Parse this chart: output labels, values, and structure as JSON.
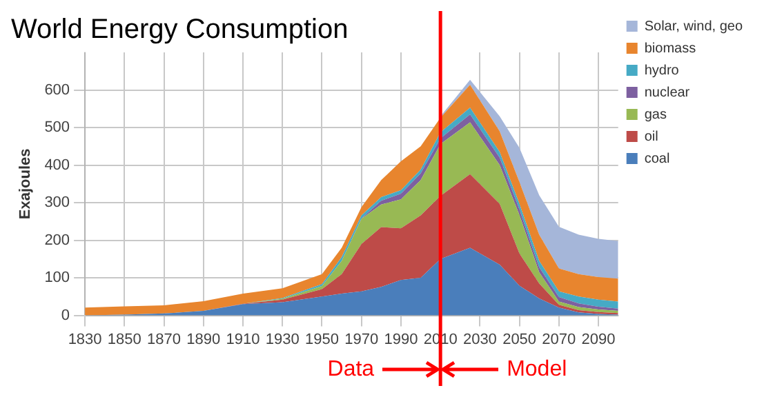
{
  "chart_data": {
    "type": "area",
    "title": "World Energy Consumption",
    "ylabel": "Exajoules",
    "stacked": true,
    "x": [
      1830,
      1850,
      1870,
      1890,
      1910,
      1930,
      1950,
      1960,
      1970,
      1980,
      1990,
      2000,
      2010,
      2025,
      2040,
      2050,
      2060,
      2070,
      2080,
      2090,
      2100
    ],
    "series": [
      {
        "name": "coal",
        "color": "#4a7ebb",
        "values": [
          0,
          2,
          5,
          12,
          30,
          35,
          50,
          58,
          64,
          76,
          94,
          100,
          150,
          180,
          135,
          79,
          45,
          21,
          8,
          4,
          2
        ]
      },
      {
        "name": "oil",
        "color": "#be4b48",
        "values": [
          0,
          0,
          0,
          0,
          1,
          7,
          20,
          52,
          126,
          159,
          138,
          166,
          168,
          196,
          162,
          86,
          40,
          7,
          6,
          5,
          4
        ]
      },
      {
        "name": "gas",
        "color": "#98b954",
        "values": [
          0,
          0,
          0,
          0,
          0,
          2,
          8,
          35,
          67,
          60,
          77,
          94,
          138,
          138,
          103,
          102,
          30,
          9,
          8,
          7,
          6
        ]
      },
      {
        "name": "nuclear",
        "color": "#7d60a0",
        "values": [
          0,
          0,
          0,
          0,
          0,
          0,
          0,
          0,
          1,
          10,
          15,
          18,
          15,
          21,
          20,
          15,
          13,
          12,
          10,
          7,
          6
        ]
      },
      {
        "name": "hydro",
        "color": "#46aac5",
        "values": [
          0,
          0,
          0,
          0,
          0,
          2,
          5,
          10,
          8,
          10,
          9,
          10,
          16,
          18,
          15,
          15,
          17,
          15,
          18,
          19,
          19
        ]
      },
      {
        "name": "biomass",
        "color": "#e8852e",
        "values": [
          21,
          22,
          22,
          26,
          27,
          26,
          27,
          25,
          22,
          45,
          77,
          62,
          39,
          61,
          55,
          58,
          70,
          61,
          60,
          60,
          61
        ]
      },
      {
        "name": "Solar, wind, geo",
        "color": "#a5b6d9",
        "values": [
          null,
          null,
          null,
          null,
          null,
          null,
          null,
          null,
          null,
          null,
          null,
          null,
          4,
          13,
          40,
          91,
          105,
          111,
          105,
          102,
          100
        ]
      }
    ],
    "xlim": [
      1830,
      2100
    ],
    "xticks": [
      1830,
      1850,
      1870,
      1890,
      1910,
      1930,
      1950,
      1970,
      1990,
      2010,
      2030,
      2050,
      2070,
      2090
    ],
    "ylim": [
      0,
      700
    ],
    "yticks": [
      0,
      100,
      200,
      300,
      400,
      500,
      600
    ],
    "grid": true,
    "legend": "right",
    "ref_lines": [
      {
        "axis": "x",
        "value": 2010,
        "color": "#ff0000"
      }
    ],
    "annotations": [
      "Data",
      "Model"
    ]
  }
}
